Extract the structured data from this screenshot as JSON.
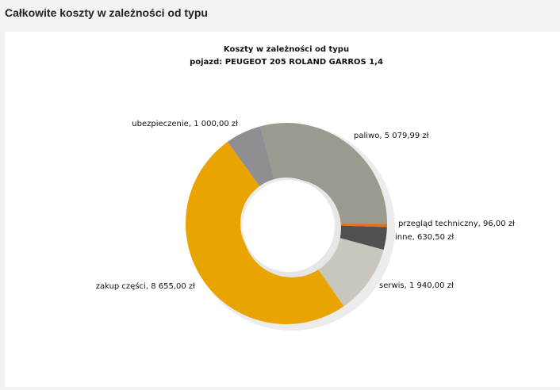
{
  "page_title": "Całkowite koszty w zależności od typu",
  "chart_data": {
    "type": "donut",
    "title": "Koszty w zależności od typu",
    "subtitle": "pojazd: PEUGEOT 205 ROLAND GARROS 1,4",
    "categories": [
      "paliwo",
      "przegląd techniczny",
      "inne",
      "serwis",
      "zakup części",
      "ubezpieczenie"
    ],
    "values": [
      5079.99,
      96,
      630.5,
      1940,
      8655,
      1000
    ],
    "value_labels": [
      "5 079,99 zł",
      "96,00 zł",
      "630,50 zł",
      "1 940,00 zł",
      "8 655,00 zł",
      "1 000,00 zł"
    ],
    "colors": [
      "#9a9a8f",
      "#e0701a",
      "#4f5052",
      "#c8c6bd",
      "#e9a400",
      "#8f8f93"
    ]
  }
}
